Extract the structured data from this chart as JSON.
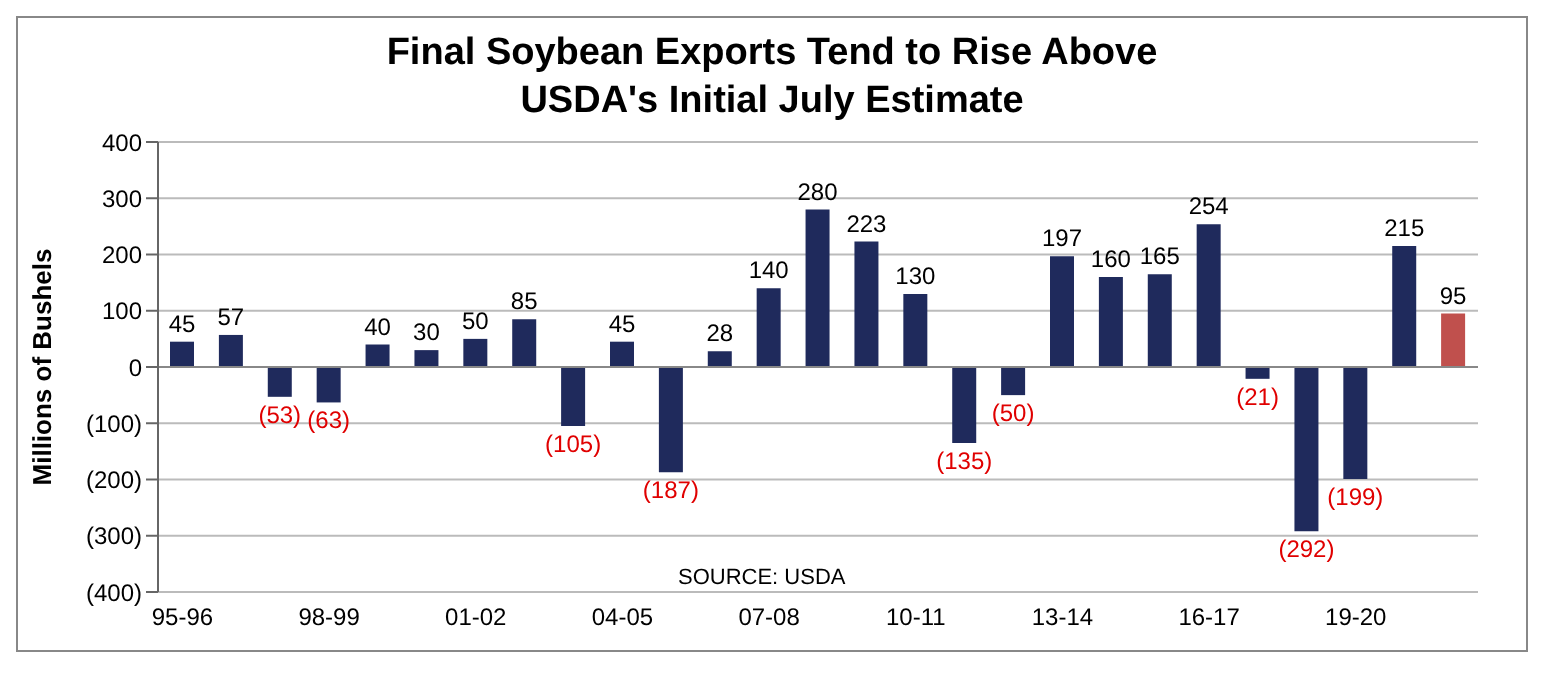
{
  "chart_data": {
    "type": "bar",
    "title": "Final Soybean Exports Tend to Rise Above USDA's Initial July Estimate",
    "ylabel": "Millions of Bushels",
    "categories": [
      "95-96",
      null,
      null,
      "98-99",
      null,
      null,
      "01-02",
      null,
      null,
      "04-05",
      null,
      null,
      "07-08",
      null,
      null,
      "10-11",
      null,
      null,
      "13-14",
      null,
      null,
      "16-17",
      null,
      null,
      "19-20",
      null,
      null
    ],
    "values": [
      45,
      57,
      -53,
      -63,
      40,
      30,
      50,
      85,
      -105,
      45,
      -187,
      28,
      140,
      280,
      223,
      130,
      -135,
      -50,
      197,
      160,
      165,
      254,
      -21,
      -292,
      -199,
      215,
      95
    ],
    "colors": [
      "#1f2a5c",
      "#1f2a5c",
      "#1f2a5c",
      "#1f2a5c",
      "#1f2a5c",
      "#1f2a5c",
      "#1f2a5c",
      "#1f2a5c",
      "#1f2a5c",
      "#1f2a5c",
      "#1f2a5c",
      "#1f2a5c",
      "#1f2a5c",
      "#1f2a5c",
      "#1f2a5c",
      "#1f2a5c",
      "#1f2a5c",
      "#1f2a5c",
      "#1f2a5c",
      "#1f2a5c",
      "#1f2a5c",
      "#1f2a5c",
      "#1f2a5c",
      "#1f2a5c",
      "#1f2a5c",
      "#1f2a5c",
      "#c0504d"
    ],
    "value_labels": [
      "45",
      "57",
      "(53)",
      "(63)",
      "40",
      "30",
      "50",
      "85",
      "(105)",
      "45",
      "(187)",
      "28",
      "140",
      "280",
      "223",
      "130",
      "(135)",
      "(50)",
      "197",
      "160",
      "165",
      "254",
      "(21)",
      "(292)",
      "(199)",
      "215",
      "95"
    ],
    "ylim": [
      -400,
      400
    ],
    "yticks": [
      {
        "value": -400,
        "label": "(400)"
      },
      {
        "value": -300,
        "label": "(300)"
      },
      {
        "value": -200,
        "label": "(200)"
      },
      {
        "value": -100,
        "label": "(100)"
      },
      0,
      100,
      200,
      300,
      400
    ],
    "grid": "y",
    "annotations": [
      {
        "text": "SOURCE: USDA"
      }
    ]
  }
}
